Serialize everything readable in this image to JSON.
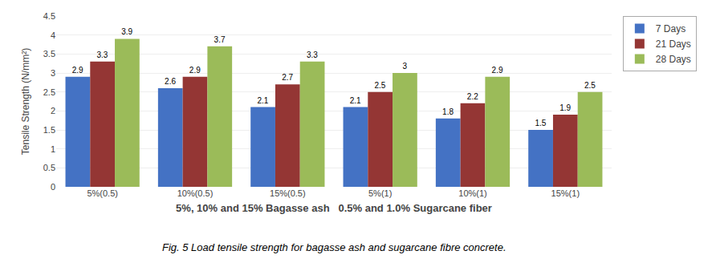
{
  "chart_data": {
    "type": "bar",
    "categories": [
      "5%(0.5)",
      "10%(0.5)",
      "15%(0.5)",
      "5%(1)",
      "10%(1)",
      "15%(1)"
    ],
    "series": [
      {
        "name": "7 Days",
        "color": "#4472c4",
        "values": [
          2.9,
          2.6,
          2.1,
          2.1,
          1.8,
          1.5
        ]
      },
      {
        "name": "21 Days",
        "color": "#943634",
        "values": [
          3.3,
          2.9,
          2.7,
          2.5,
          2.2,
          1.9
        ]
      },
      {
        "name": "28 Days",
        "color": "#9bbb59",
        "values": [
          3.9,
          3.7,
          3.3,
          3.0,
          2.9,
          2.5
        ]
      }
    ],
    "xlabel": "5%, 10% and 15% Bagasse ash   0.5% and 1.0% Sugarcane fiber",
    "ylabel": "Tensile Strength (N/mm²)",
    "caption": "Fig. 5 Load tensile strength for bagasse ash and sugarcane fibre concrete.",
    "ylim": [
      0,
      4.5
    ],
    "yticks": [
      0,
      0.5,
      1.0,
      1.5,
      2.0,
      2.5,
      3.0,
      3.5,
      4.0,
      4.5
    ],
    "grid": true,
    "legend": "right",
    "data_labels": true
  }
}
